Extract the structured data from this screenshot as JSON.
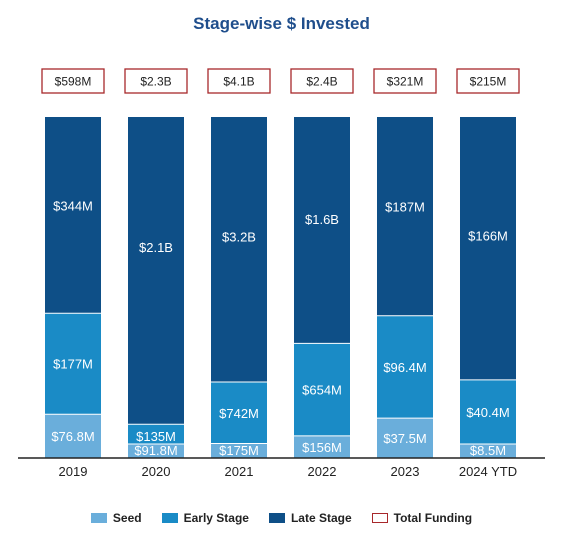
{
  "chart_data": {
    "type": "bar",
    "stacked": true,
    "title": "Stage-wise $ Invested",
    "categories": [
      "2019",
      "2020",
      "2021",
      "2022",
      "2023",
      "2024 YTD"
    ],
    "series": [
      {
        "name": "Seed",
        "color": "#6aaedb",
        "values": [
          76.8,
          91.8,
          175,
          156,
          37.5,
          8.5
        ],
        "labels": [
          "$76.8M",
          "$91.8M",
          "$175M",
          "$156M",
          "$37.5M",
          "$8.5M"
        ]
      },
      {
        "name": "Early Stage",
        "color": "#1a8bc6",
        "values": [
          177,
          135,
          742,
          654,
          96.4,
          40.4
        ],
        "labels": [
          "$177M",
          "$135M",
          "$742M",
          "$654M",
          "$96.4M",
          "$40.4M"
        ]
      },
      {
        "name": "Late Stage",
        "color": "#0e4f87",
        "values": [
          344,
          2100,
          3200,
          1600,
          187,
          166
        ],
        "labels": [
          "$344M",
          "$2.1B",
          "$3.2B",
          "$1.6B",
          "$187M",
          "$166M"
        ]
      }
    ],
    "totals": {
      "name": "Total Funding",
      "values": [
        598,
        2300,
        4100,
        2400,
        321,
        215
      ],
      "labels": [
        "$598M",
        "$2.3B",
        "$4.1B",
        "$2.4B",
        "$321M",
        "$215M"
      ],
      "color": "#a8282b"
    },
    "normalized_to": 100,
    "unit": "$M"
  }
}
